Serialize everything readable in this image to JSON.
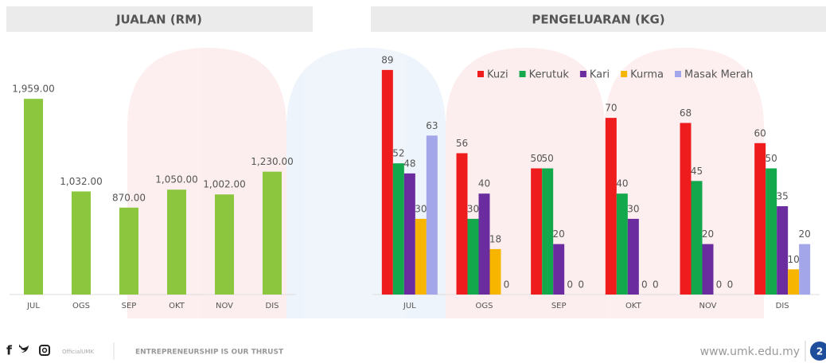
{
  "chart_data": [
    {
      "type": "bar",
      "title": "JUALAN (RM)",
      "categories": [
        "JUL",
        "OGS",
        "SEP",
        "OKT",
        "NOV",
        "DIS"
      ],
      "values": [
        1959,
        1032,
        870,
        1050,
        1002,
        1230
      ],
      "value_labels": [
        "1,959.00",
        "1,032.00",
        "870.00",
        "1,050.00",
        "1,002.00",
        "1,230.00"
      ],
      "color": "#8cc63f",
      "ylim": [
        0,
        2000
      ]
    },
    {
      "type": "grouped_bar",
      "title": "PENGELUARAN (KG)",
      "categories": [
        "JUL",
        "OGS",
        "SEP",
        "OKT",
        "NOV",
        "DIS"
      ],
      "series": [
        {
          "name": "Kuzi",
          "color": "#ee1c1c",
          "values": [
            89,
            56,
            50,
            70,
            68,
            60
          ]
        },
        {
          "name": "Kerutuk",
          "color": "#13a84c",
          "values": [
            52,
            30,
            50,
            40,
            45,
            50
          ]
        },
        {
          "name": "Kari",
          "color": "#6a2c9e",
          "values": [
            48,
            40,
            20,
            30,
            20,
            35
          ]
        },
        {
          "name": "Kurma",
          "color": "#f7b500",
          "values": [
            30,
            18,
            0,
            0,
            0,
            10
          ]
        },
        {
          "name": "Masak Merah",
          "color": "#a3a6e8",
          "values": [
            63,
            0,
            0,
            0,
            0,
            20
          ]
        }
      ],
      "ylim": [
        0,
        100
      ]
    }
  ],
  "footer": {
    "handle": "OfficialUMK",
    "slogan": "ENTREPRENEURSHIP IS OUR THRUST",
    "website": "www.umk.edu.my",
    "page": "2"
  }
}
